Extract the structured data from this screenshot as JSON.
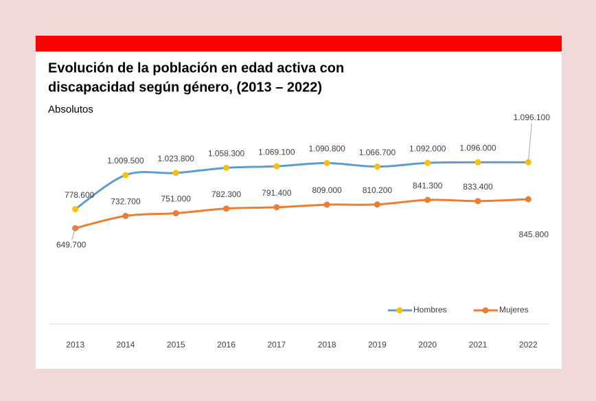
{
  "chart_data": {
    "type": "line",
    "title": [
      "Evolución de la población en edad activa con",
      "discapacidad según género, (2013 – 2022)"
    ],
    "subtitle": "Absolutos",
    "categories": [
      "2013",
      "2014",
      "2015",
      "2016",
      "2017",
      "2018",
      "2019",
      "2020",
      "2021",
      "2022"
    ],
    "series": [
      {
        "name": "Hombres",
        "color": "#5b9bd5",
        "marker_color": "#ffc000",
        "values": [
          778600,
          1009500,
          1023800,
          1058300,
          1069100,
          1090800,
          1066700,
          1092000,
          1096000,
          1096100
        ],
        "value_labels": [
          "778.600",
          "1.009.500",
          "1.023.800",
          "1.058.300",
          "1.069.100",
          "1.090.800",
          "1.066.700",
          "1.092.000",
          "1.096.000",
          "1.096.100"
        ]
      },
      {
        "name": "Mujeres",
        "color": "#ed7d31",
        "marker_color": "#ed7d31",
        "values": [
          649700,
          732700,
          751000,
          782300,
          791400,
          809000,
          810200,
          841300,
          833400,
          845800
        ],
        "value_labels": [
          "649.700",
          "732.700",
          "751.000",
          "782.300",
          "791.400",
          "809.000",
          "810.200",
          "841.300",
          "833.400",
          "845.800"
        ]
      }
    ],
    "ylim": [
      0,
      1200000
    ],
    "legend": "bottom-right"
  }
}
